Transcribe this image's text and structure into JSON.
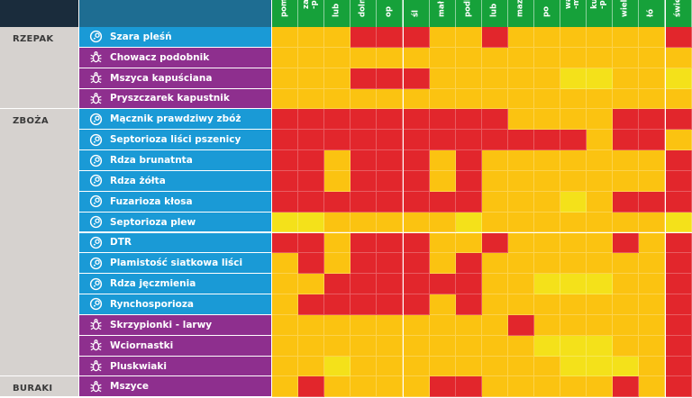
{
  "colors": {
    "header_dark": "#1a2c3c",
    "header_blue": "#1e6d92",
    "header_green": "#16a13a",
    "crop_bg": "#d6d2cf",
    "disease_bg": "#1a9ad6",
    "pest_bg": "#8e2f8e",
    "level_3": "#e2262c",
    "level_2": "#fbc311",
    "level_1": "#f4e11a",
    "level_0": "#fffbe0"
  },
  "chart_data": {
    "type": "heatmap",
    "title": "",
    "legend": "none visible",
    "columns": [
      "pom",
      "zach\n-pom",
      "lub",
      "doln",
      "op",
      "śl",
      "mał",
      "podk",
      "lub",
      "maz",
      "po",
      "war\n-ma",
      "kuj\n-po",
      "wielk",
      "łó",
      "świętk"
    ],
    "sections": [
      {
        "crop": "RZEPAK",
        "rows": [
          {
            "name": "Szara pleśń",
            "kind": "disease",
            "levels": [
              2,
              2,
              2,
              3,
              3,
              3,
              2,
              2,
              3,
              2,
              2,
              2,
              2,
              2,
              2,
              3
            ]
          },
          {
            "name": "Chowacz podobnik",
            "kind": "pest",
            "levels": [
              2,
              2,
              2,
              2,
              2,
              2,
              2,
              2,
              2,
              2,
              2,
              2,
              2,
              2,
              2,
              2
            ]
          },
          {
            "name": "Mszyca kapuściana",
            "kind": "pest",
            "levels": [
              2,
              2,
              2,
              3,
              3,
              3,
              2,
              2,
              2,
              2,
              2,
              1,
              1,
              2,
              2,
              1
            ]
          },
          {
            "name": "Pryszczarek kapustnik",
            "kind": "pest",
            "levels": [
              2,
              2,
              2,
              2,
              2,
              2,
              2,
              2,
              2,
              2,
              2,
              2,
              2,
              2,
              2,
              2
            ]
          }
        ]
      },
      {
        "crop": "ZBOŻA",
        "rows": [
          {
            "name": "Mącznik prawdziwy zbóż",
            "kind": "disease",
            "levels": [
              3,
              3,
              3,
              3,
              3,
              3,
              3,
              3,
              3,
              2,
              2,
              2,
              2,
              3,
              3,
              3
            ]
          },
          {
            "name": "Septorioza liści pszenicy",
            "kind": "disease",
            "levels": [
              3,
              3,
              3,
              3,
              3,
              3,
              3,
              3,
              3,
              3,
              3,
              3,
              2,
              3,
              3,
              2
            ]
          },
          {
            "name": "Rdza brunatnta",
            "kind": "disease",
            "levels": [
              3,
              3,
              2,
              3,
              3,
              3,
              2,
              3,
              2,
              2,
              2,
              2,
              2,
              2,
              2,
              3
            ]
          },
          {
            "name": "Rdza żółta",
            "kind": "disease",
            "levels": [
              3,
              3,
              2,
              3,
              3,
              3,
              2,
              3,
              2,
              2,
              2,
              2,
              2,
              2,
              2,
              3
            ]
          },
          {
            "name": "Fuzarioza kłosa",
            "kind": "disease",
            "levels": [
              3,
              3,
              3,
              3,
              3,
              3,
              3,
              3,
              2,
              2,
              2,
              1,
              2,
              3,
              3,
              3
            ]
          },
          {
            "name": "Septorioza plew",
            "kind": "disease",
            "levels": [
              1,
              1,
              2,
              2,
              2,
              2,
              2,
              1,
              2,
              2,
              2,
              2,
              2,
              2,
              2,
              1
            ]
          },
          {
            "name": "DTR",
            "kind": "disease",
            "levels": [
              3,
              3,
              2,
              3,
              3,
              3,
              2,
              2,
              3,
              2,
              2,
              2,
              2,
              3,
              2,
              3
            ]
          },
          {
            "name": "Plamistość siatkowa liści",
            "kind": "disease",
            "levels": [
              2,
              3,
              2,
              3,
              3,
              3,
              2,
              3,
              2,
              2,
              2,
              2,
              2,
              2,
              2,
              3
            ]
          },
          {
            "name": "Rdza jęczmienia",
            "kind": "disease",
            "levels": [
              2,
              2,
              3,
              3,
              3,
              3,
              3,
              3,
              2,
              2,
              1,
              1,
              1,
              2,
              2,
              3
            ]
          },
          {
            "name": "Rynchosporioza",
            "kind": "disease",
            "levels": [
              2,
              3,
              3,
              3,
              3,
              3,
              2,
              3,
              2,
              2,
              2,
              2,
              2,
              2,
              2,
              3
            ]
          },
          {
            "name": "Skrzypionki - larwy",
            "kind": "pest",
            "levels": [
              2,
              2,
              2,
              2,
              2,
              2,
              2,
              2,
              2,
              3,
              2,
              2,
              2,
              2,
              2,
              3
            ]
          },
          {
            "name": "Wciornastki",
            "kind": "pest",
            "levels": [
              2,
              2,
              2,
              2,
              2,
              2,
              2,
              2,
              2,
              2,
              1,
              1,
              1,
              2,
              2,
              3
            ]
          },
          {
            "name": "Pluskwiaki",
            "kind": "pest",
            "levels": [
              2,
              2,
              1,
              2,
              2,
              2,
              2,
              2,
              2,
              2,
              2,
              1,
              1,
              1,
              2,
              3
            ]
          }
        ]
      },
      {
        "crop": "BURAKI",
        "rows": [
          {
            "name": "Mszyce",
            "kind": "pest",
            "levels": [
              2,
              3,
              2,
              2,
              2,
              2,
              3,
              3,
              2,
              2,
              2,
              2,
              2,
              3,
              2,
              3
            ]
          }
        ]
      }
    ]
  }
}
